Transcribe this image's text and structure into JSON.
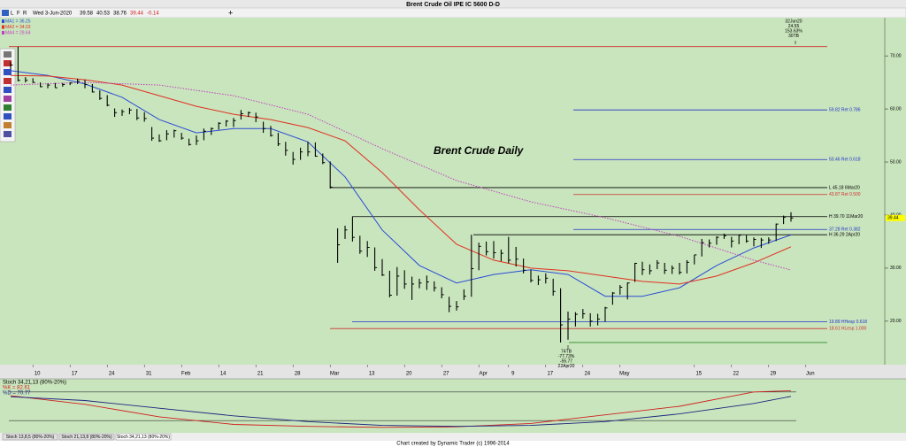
{
  "chart_data": [
    {
      "type": "ohlc",
      "title": "Brent Crude Oil IPE IC 5600 D-D",
      "annotation_title": "Brent Crude Daily",
      "categories": [
        null,
        null,
        null,
        "10",
        null,
        null,
        null,
        null,
        "17",
        null,
        null,
        null,
        null,
        "24",
        null,
        null,
        null,
        null,
        "31",
        null,
        null,
        null,
        null,
        "Feb",
        null,
        null,
        null,
        null,
        "14",
        null,
        null,
        null,
        null,
        "21",
        null,
        null,
        null,
        null,
        "28",
        null,
        null,
        null,
        null,
        "Mar",
        null,
        null,
        null,
        null,
        "13",
        null,
        null,
        null,
        null,
        "20",
        null,
        null,
        null,
        null,
        "27",
        null,
        null,
        null,
        null,
        "Apr",
        null,
        null,
        null,
        "9",
        null,
        null,
        null,
        null,
        "17",
        null,
        null,
        null,
        null,
        "24",
        null,
        null,
        null,
        null,
        "May",
        null,
        null,
        null,
        null,
        null,
        null,
        null,
        null,
        null,
        "15",
        null,
        null,
        null,
        null,
        "22",
        null,
        null,
        null,
        null,
        "29",
        null,
        null,
        null,
        null,
        "Jun"
      ],
      "high": [
        68.9,
        71.75,
        66.0,
        65.8,
        65.0,
        64.8,
        64.9,
        64.9,
        65.0,
        65.7,
        65.5,
        64.7,
        63.5,
        62.6,
        60.1,
        59.9,
        60.2,
        60.0,
        59.4,
        56.6,
        55.2,
        56.0,
        56.1,
        55.5,
        54.4,
        55.0,
        56.3,
        56.5,
        57.5,
        57.9,
        58.3,
        59.8,
        59.5,
        59.3,
        57.6,
        56.8,
        55.5,
        53.8,
        51.9,
        52.7,
        53.8,
        53.7,
        51.6,
        50.1,
        37.5,
        38.0,
        39.7,
        36.1,
        35.1,
        33.9,
        31.7,
        29.5,
        30.2,
        29.6,
        28.4,
        28.0,
        28.6,
        27.5,
        26.4,
        24.6,
        23.8,
        26.0,
        36.29,
        34.8,
        35.0,
        35.1,
        33.5,
        35.9,
        34.0,
        31.8,
        29.7,
        28.6,
        29.0,
        28.0,
        26.2,
        21.8,
        21.7,
        22.3,
        21.5,
        21.4,
        22.7,
        25.5,
        26.8,
        27.3,
        31.0,
        31.2,
        30.7,
        31.5,
        31.0,
        30.5,
        31.0,
        31.5,
        32.5,
        35.5,
        35.4,
        36.0,
        36.5,
        35.9,
        36.2,
        36.2,
        35.8,
        35.7,
        35.8,
        38.4,
        39.9,
        40.53,
        null,
        null
      ],
      "low": [
        67.5,
        65.2,
        65.0,
        64.9,
        64.1,
        63.9,
        64.0,
        64.2,
        64.5,
        64.7,
        63.9,
        63.1,
        61.7,
        60.5,
        58.5,
        58.7,
        59.0,
        57.9,
        57.6,
        54.0,
        53.8,
        54.1,
        54.6,
        54.2,
        53.1,
        53.2,
        54.1,
        55.1,
        56.1,
        56.7,
        56.6,
        58.0,
        58.5,
        57.5,
        55.5,
        54.8,
        53.0,
        51.2,
        49.5,
        50.4,
        51.1,
        51.0,
        49.6,
        45.0,
        31.0,
        35.5,
        35.0,
        32.7,
        32.1,
        29.5,
        28.5,
        24.5,
        24.8,
        26.1,
        24.0,
        26.2,
        25.9,
        25.6,
        24.3,
        21.7,
        22.0,
        24.0,
        24.6,
        29.6,
        32.4,
        31.8,
        31.3,
        30.9,
        30.3,
        29.0,
        27.3,
        26.8,
        27.1,
        24.8,
        15.98,
        16.5,
        19.0,
        20.5,
        19.0,
        19.2,
        19.9,
        23.1,
        25.0,
        24.1,
        27.4,
        28.7,
        28.8,
        29.8,
        28.9,
        28.9,
        28.8,
        29.0,
        30.7,
        32.2,
        33.9,
        34.4,
        35.5,
        33.9,
        34.5,
        34.8,
        34.1,
        33.8,
        34.6,
        35.1,
        38.3,
        38.76,
        null,
        null
      ],
      "close": [
        68.3,
        65.4,
        65.4,
        65.0,
        64.2,
        64.5,
        64.0,
        64.6,
        64.9,
        65.2,
        64.6,
        63.2,
        62.0,
        60.7,
        59.3,
        59.5,
        59.8,
        58.3,
        58.2,
        54.5,
        54.0,
        55.3,
        55.9,
        54.5,
        53.3,
        54.0,
        55.8,
        56.3,
        57.3,
        57.7,
        57.8,
        59.1,
        59.3,
        58.5,
        56.3,
        55.0,
        53.4,
        52.2,
        50.5,
        51.9,
        51.9,
        51.1,
        49.9,
        45.27,
        34.4,
        37.2,
        35.8,
        33.2,
        33.9,
        30.1,
        28.7,
        24.9,
        28.5,
        27.0,
        27.0,
        27.2,
        27.4,
        26.3,
        25.0,
        22.8,
        22.7,
        24.7,
        29.9,
        34.1,
        33.1,
        32.9,
        32.8,
        31.5,
        31.7,
        29.6,
        27.7,
        27.8,
        28.1,
        25.6,
        19.3,
        20.4,
        21.3,
        21.4,
        20.0,
        20.4,
        22.5,
        25.3,
        26.4,
        27.2,
        30.9,
        29.7,
        29.5,
        30.97,
        29.6,
        29.98,
        29.2,
        31.1,
        32.5,
        34.8,
        34.7,
        35.8,
        36.1,
        35.1,
        36.2,
        35.1,
        35.4,
        35.3,
        35.3,
        38.3,
        39.6,
        39.44,
        null,
        null
      ],
      "bar_color": "#000000",
      "series": [
        {
          "name": "MA1",
          "legend_label": "MA1 = 36.25",
          "color": "#2a4bd7",
          "style": "solid",
          "x": [
            0,
            5,
            10,
            15,
            20,
            25,
            30,
            35,
            40,
            45,
            50,
            55,
            60,
            65,
            70,
            75,
            80,
            85,
            90,
            95,
            100,
            105
          ],
          "values": [
            67.2,
            66.3,
            64.7,
            62.2,
            58.0,
            55.5,
            56.3,
            56.3,
            53.8,
            47.2,
            37.2,
            30.5,
            27.2,
            28.8,
            29.7,
            28.8,
            24.7,
            24.7,
            26.3,
            30.5,
            33.8,
            36.25
          ]
        },
        {
          "name": "MA2",
          "legend_label": "MA2 = 34.03",
          "color": "#e03020",
          "style": "solid",
          "x": [
            0,
            5,
            10,
            15,
            20,
            25,
            30,
            35,
            40,
            45,
            50,
            55,
            60,
            65,
            70,
            75,
            80,
            85,
            90,
            95,
            100,
            105
          ],
          "values": [
            66.3,
            66.2,
            65.5,
            64.5,
            62.5,
            60.5,
            59.0,
            58.0,
            56.5,
            54.0,
            48.0,
            41.0,
            34.5,
            31.5,
            30.0,
            29.5,
            28.5,
            27.5,
            27.0,
            28.5,
            31.0,
            34.03
          ]
        },
        {
          "name": "MA4",
          "legend_label": "MA4 = 29.64",
          "color": "#c040c0",
          "style": "dotted",
          "x": [
            0,
            10,
            20,
            30,
            40,
            50,
            60,
            70,
            80,
            90,
            100,
            105
          ],
          "values": [
            64.5,
            65.0,
            64.5,
            62.5,
            59.0,
            52.5,
            46.5,
            42.5,
            39.5,
            36.0,
            31.5,
            29.64
          ]
        }
      ],
      "levels": [
        {
          "value": 71.75,
          "label": null,
          "color": "#d03030"
        },
        {
          "value": 59.82,
          "label": "59.82 Ret 0.786",
          "color": "#2233cc"
        },
        {
          "value": 50.46,
          "label": "50.46 Ret 0.618",
          "color": "#2233cc"
        },
        {
          "value": 45.18,
          "label": "L 45.18 6Mar20",
          "color": "#000000"
        },
        {
          "value": 43.87,
          "label": "43.87 Ret 0.500",
          "color": "#d03030"
        },
        {
          "value": 39.7,
          "label": "H 39.70 11Mar20",
          "color": "#000000"
        },
        {
          "value": 37.28,
          "label": "37.28 Ret 0.382",
          "color": "#2233cc"
        },
        {
          "value": 36.29,
          "label": "H 36.29 2Apr20",
          "color": "#000000"
        },
        {
          "value": 19.89,
          "label": "19.89 HHesp 0.618",
          "color": "#2233cc"
        },
        {
          "value": 18.61,
          "label": "18.61 HLesp 1.000",
          "color": "#d03030"
        },
        {
          "value": 15.98,
          "label": null,
          "color": "#2a8a2a"
        }
      ],
      "annotations": [
        [
          "32Jun20",
          "24.55",
          "153.63%",
          "30TB"
        ],
        [
          "74TB",
          "-77.73%",
          "-55.77",
          "22Apr20"
        ]
      ],
      "ylim": [
        11.8,
        77.2
      ],
      "yticks": [
        {
          "value": 20,
          "label": "20.00"
        },
        {
          "value": 30,
          "label": "30.00"
        },
        {
          "value": 40,
          "label": "40.00"
        },
        {
          "value": 50,
          "label": "50.00"
        },
        {
          "value": 60,
          "label": "60.00"
        },
        {
          "value": 70,
          "label": "70.00"
        }
      ],
      "last_price_color": "#ffff00"
    },
    {
      "type": "line",
      "title": "Stoch 34,21,13 (80%-20%)",
      "ylim": [
        0,
        100
      ],
      "yticks": [
        20,
        80
      ],
      "series": [
        {
          "name": "%K",
          "legend_label": "%K = 82.61",
          "color": "#d02020",
          "x": [
            0,
            10,
            20,
            30,
            40,
            50,
            60,
            70,
            80,
            90,
            100,
            105
          ],
          "values": [
            72,
            54,
            28,
            12,
            8,
            6,
            7,
            14,
            32,
            50,
            80,
            82.61
          ]
        },
        {
          "name": "%D",
          "legend_label": "%D = 70.77",
          "color": "#1a237e",
          "x": [
            0,
            10,
            20,
            30,
            40,
            50,
            60,
            70,
            80,
            90,
            100,
            105
          ],
          "values": [
            70,
            62,
            46,
            30,
            18,
            10,
            8,
            10,
            18,
            34,
            56,
            70.77
          ]
        }
      ]
    }
  ],
  "ui": {
    "toolbar": [
      "L",
      "F",
      "R"
    ],
    "date": "Wed 3-Jun-2020",
    "open": "39.58",
    "change": "-0.14",
    "tabs": [
      "Stoch 13,8,5 (80%-20%)",
      "Stoch 21,13,8 (80%-20%)",
      "Stoch 34,21,13 (80%-20%)"
    ],
    "footer": "Chart created by Dynamic Trader  (c)  1996-2014"
  }
}
